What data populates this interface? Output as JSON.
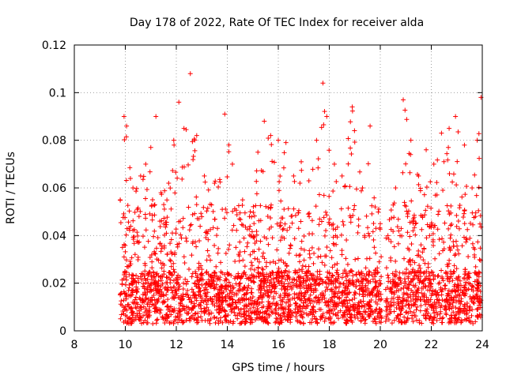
{
  "chart_data": {
    "type": "scatter",
    "title": "Day 178 of 2022, Rate Of TEC Index for receiver alda",
    "xlabel": "GPS time / hours",
    "ylabel": "ROTI / TECUs",
    "xlim": [
      8,
      24
    ],
    "ylim": [
      0,
      0.12
    ],
    "x_ticks": [
      "8",
      "10",
      "12",
      "14",
      "16",
      "18",
      "20",
      "22",
      "24"
    ],
    "y_ticks": [
      "0",
      "0.02",
      "0.04",
      "0.06",
      "0.08",
      "0.1",
      "0.12"
    ],
    "grid": true,
    "marker": "plus",
    "color": "#ff0000",
    "data_gap": [
      20.05,
      20.2
    ],
    "envelope": [
      {
        "x": 9.8,
        "y": 0.055
      },
      {
        "x": 9.95,
        "y": 0.09
      },
      {
        "x": 10.05,
        "y": 0.086
      },
      {
        "x": 10.3,
        "y": 0.06
      },
      {
        "x": 10.6,
        "y": 0.065
      },
      {
        "x": 10.8,
        "y": 0.07
      },
      {
        "x": 11.0,
        "y": 0.077
      },
      {
        "x": 11.2,
        "y": 0.09
      },
      {
        "x": 11.4,
        "y": 0.058
      },
      {
        "x": 11.7,
        "y": 0.062
      },
      {
        "x": 11.9,
        "y": 0.08
      },
      {
        "x": 12.1,
        "y": 0.096
      },
      {
        "x": 12.3,
        "y": 0.085
      },
      {
        "x": 12.55,
        "y": 0.108
      },
      {
        "x": 12.8,
        "y": 0.082
      },
      {
        "x": 13.1,
        "y": 0.065
      },
      {
        "x": 13.5,
        "y": 0.062
      },
      {
        "x": 13.9,
        "y": 0.091
      },
      {
        "x": 14.2,
        "y": 0.07
      },
      {
        "x": 14.6,
        "y": 0.055
      },
      {
        "x": 14.9,
        "y": 0.05
      },
      {
        "x": 15.2,
        "y": 0.075
      },
      {
        "x": 15.45,
        "y": 0.088
      },
      {
        "x": 15.7,
        "y": 0.082
      },
      {
        "x": 16.0,
        "y": 0.08
      },
      {
        "x": 16.3,
        "y": 0.079
      },
      {
        "x": 16.6,
        "y": 0.065
      },
      {
        "x": 16.9,
        "y": 0.071
      },
      {
        "x": 17.2,
        "y": 0.063
      },
      {
        "x": 17.5,
        "y": 0.08
      },
      {
        "x": 17.75,
        "y": 0.104
      },
      {
        "x": 17.9,
        "y": 0.09
      },
      {
        "x": 18.2,
        "y": 0.07
      },
      {
        "x": 18.5,
        "y": 0.065
      },
      {
        "x": 18.9,
        "y": 0.094
      },
      {
        "x": 19.3,
        "y": 0.06
      },
      {
        "x": 19.6,
        "y": 0.086
      },
      {
        "x": 20.0,
        "y": 0.045
      },
      {
        "x": 20.3,
        "y": 0.04
      },
      {
        "x": 20.6,
        "y": 0.06
      },
      {
        "x": 20.9,
        "y": 0.097
      },
      {
        "x": 21.2,
        "y": 0.08
      },
      {
        "x": 21.5,
        "y": 0.065
      },
      {
        "x": 21.8,
        "y": 0.076
      },
      {
        "x": 22.1,
        "y": 0.07
      },
      {
        "x": 22.4,
        "y": 0.083
      },
      {
        "x": 22.7,
        "y": 0.085
      },
      {
        "x": 22.95,
        "y": 0.09
      },
      {
        "x": 23.3,
        "y": 0.078
      },
      {
        "x": 23.6,
        "y": 0.06
      },
      {
        "x": 23.8,
        "y": 0.08
      },
      {
        "x": 23.95,
        "y": 0.098
      }
    ]
  }
}
